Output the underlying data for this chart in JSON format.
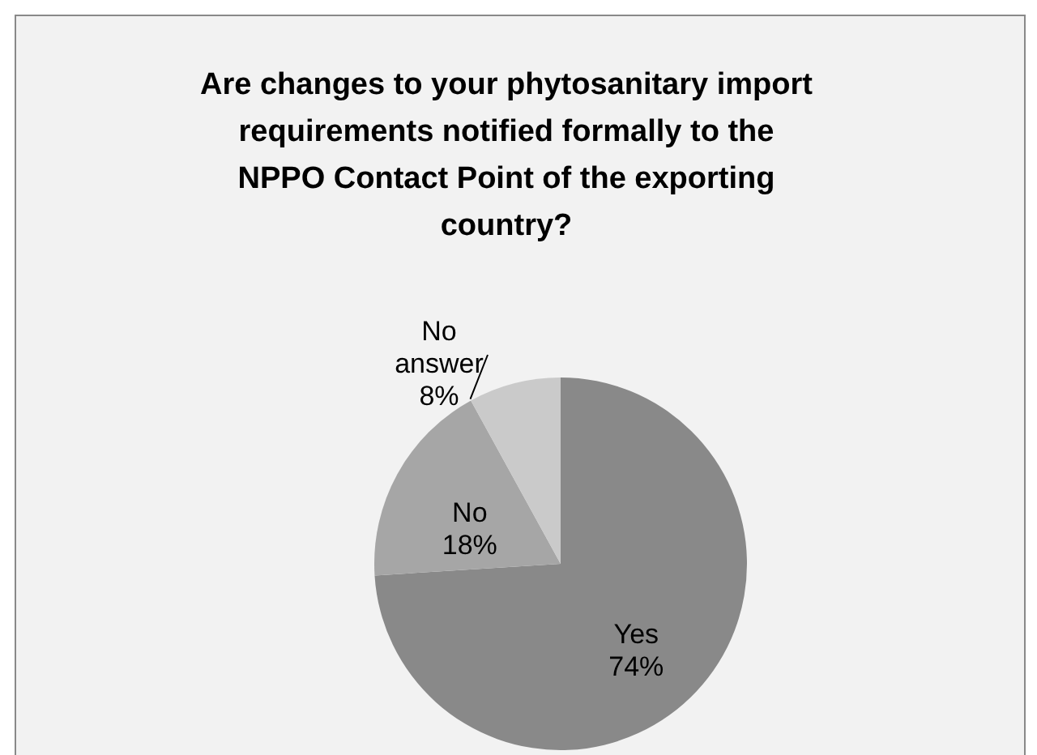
{
  "chart_data": {
    "type": "pie",
    "title": "Are changes to your phytosanitary import requirements notified formally to the NPPO Contact Point of the exporting country?",
    "categories": [
      "Yes",
      "No",
      "No answer"
    ],
    "values": [
      74,
      18,
      8
    ],
    "value_labels": [
      "74%",
      "18%",
      "8%"
    ],
    "colors": [
      "#898989",
      "#a6a6a6",
      "#cacaca"
    ],
    "data_labels": true,
    "legend": false
  }
}
